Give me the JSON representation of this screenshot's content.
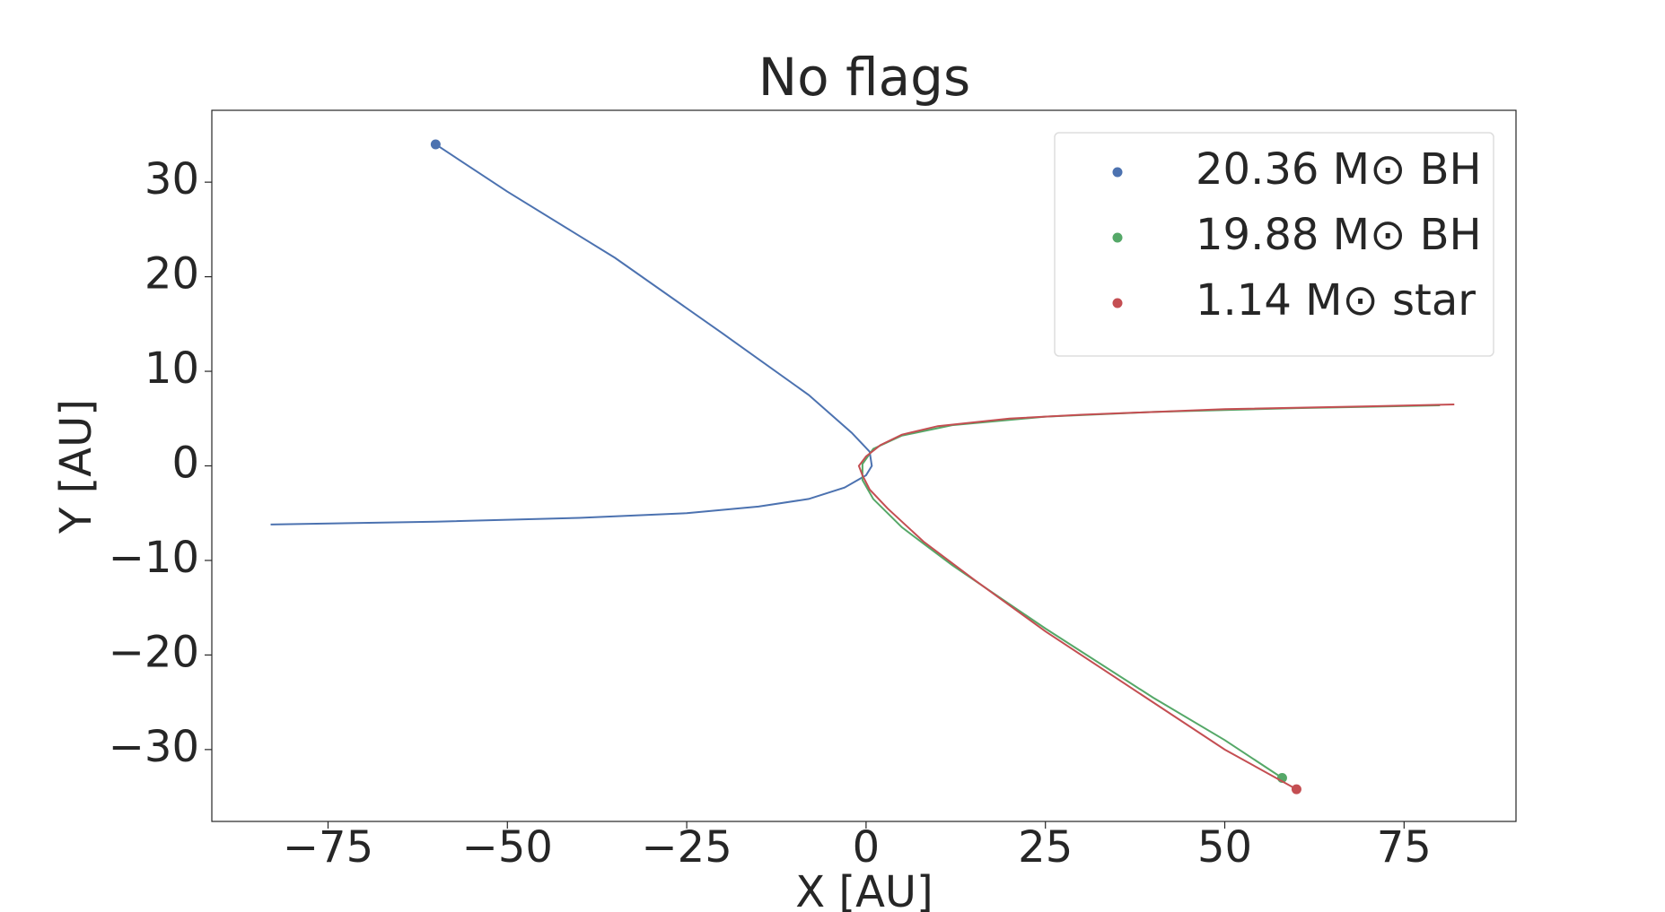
{
  "chart_data": {
    "type": "line",
    "title": "No flags",
    "x_label": "X [AU]",
    "y_label": "Y [AU]",
    "xlim": [
      -91.2,
      90.6
    ],
    "ylim": [
      -37.6,
      37.6
    ],
    "xticks": [
      {
        "value": -75,
        "label": "−75"
      },
      {
        "value": -50,
        "label": "−50"
      },
      {
        "value": -25,
        "label": "−25"
      },
      0,
      25,
      50,
      75
    ],
    "yticks": [
      {
        "value": -30,
        "label": "−30"
      },
      {
        "value": -20,
        "label": "−20"
      },
      {
        "value": -10,
        "label": "−10"
      },
      0,
      10,
      20,
      30
    ],
    "legend": "upper right",
    "series": [
      {
        "name": "20.36 M⊙ BH",
        "color": "#4c72b0",
        "x": [
          -83,
          -60,
          -40,
          -25,
          -15,
          -8,
          -3,
          0,
          0.8,
          0.5,
          -2,
          -8,
          -20,
          -35,
          -50,
          -60
        ],
        "values": [
          -6.2,
          -5.9,
          -5.5,
          -5,
          -4.3,
          -3.5,
          -2.3,
          -1,
          0,
          1.5,
          3.5,
          7.5,
          14,
          22,
          29,
          34
        ]
      },
      {
        "name": "19.88 M⊙ BH",
        "color": "#55a868",
        "x": [
          80,
          60,
          40,
          25,
          12,
          5,
          1,
          -0.5,
          -0.5,
          1,
          5,
          12,
          25,
          40,
          50,
          58
        ],
        "values": [
          6.4,
          6.1,
          5.7,
          5.2,
          4.3,
          3.2,
          1.8,
          0.2,
          -1.5,
          -3.5,
          -6.5,
          -10.5,
          -17.2,
          -24.5,
          -29,
          -33
        ]
      },
      {
        "name": "1.14 M⊙ star",
        "color": "#c44e52",
        "x": [
          82,
          70,
          50,
          30,
          20,
          10,
          5,
          2,
          0,
          -1,
          -0.5,
          0.5,
          3,
          8,
          15,
          25,
          40,
          50,
          60
        ],
        "values": [
          6.5,
          6.3,
          6,
          5.4,
          5,
          4.2,
          3.3,
          2.2,
          1,
          0,
          -1,
          -2.5,
          -4.5,
          -8,
          -12,
          -17.5,
          -25,
          -30,
          -34.2
        ]
      }
    ]
  }
}
